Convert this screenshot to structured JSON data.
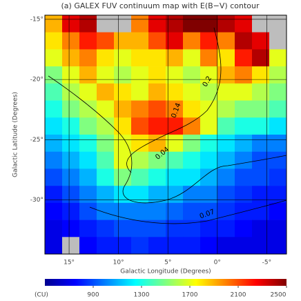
{
  "chart_data": {
    "type": "heatmap",
    "title": "(a) GALEX FUV continuum map with E(B−V) contour",
    "x_label": "Galactic Longitude (Degrees)",
    "y_label": "Galactic Latitude (Degrees)",
    "colorbar_label": "(CU)",
    "xlim": [
      17.45,
      -7
    ],
    "ylim": [
      -14.66,
      -34.5
    ],
    "xticks": [
      {
        "value": 15,
        "label": "15°"
      },
      {
        "value": 10,
        "label": "10°"
      },
      {
        "value": 5,
        "label": "5°"
      },
      {
        "value": 0,
        "label": "0°"
      },
      {
        "value": -5,
        "label": "-5°"
      }
    ],
    "yticks": [
      {
        "value": -15,
        "label": "-15°"
      },
      {
        "value": -20,
        "label": "-20°"
      },
      {
        "value": -25,
        "label": "-25°"
      },
      {
        "value": -30,
        "label": "-30°"
      }
    ],
    "clim": [
      500,
      2500
    ],
    "cticks": [
      900,
      1300,
      1700,
      2100,
      2500
    ],
    "grid": true,
    "annotations": [
      "0.14",
      "0.2",
      "0.04",
      "0.07"
    ],
    "values": [
      [
        1900,
        2300,
        2400,
        null,
        null,
        2000,
        2300,
        2400,
        2500,
        2500,
        2400,
        2300,
        null,
        null
      ],
      [
        1800,
        2000,
        2200,
        2100,
        1900,
        1900,
        2100,
        2300,
        2000,
        2200,
        2000,
        2400,
        2300,
        null
      ],
      [
        1700,
        1900,
        2000,
        1800,
        1700,
        1800,
        1800,
        1900,
        1700,
        2000,
        1800,
        2200,
        2400,
        1700
      ],
      [
        1500,
        1700,
        1900,
        1700,
        1600,
        1700,
        1800,
        1700,
        1600,
        1700,
        1900,
        2000,
        1800,
        1600
      ],
      [
        1400,
        1600,
        1700,
        1900,
        1800,
        1700,
        1900,
        1800,
        1700,
        1600,
        1700,
        1700,
        1600,
        1500
      ],
      [
        1300,
        1500,
        1600,
        1700,
        1900,
        2000,
        2100,
        2000,
        1800,
        1700,
        1600,
        1500,
        1500,
        1400
      ],
      [
        1200,
        1300,
        1500,
        1600,
        1800,
        2100,
        2200,
        2200,
        2000,
        1700,
        1400,
        1300,
        1300,
        1200
      ],
      [
        1100,
        1200,
        1300,
        1500,
        1700,
        1800,
        1900,
        1700,
        1500,
        1300,
        1200,
        1100,
        1000,
        1000
      ],
      [
        1000,
        1100,
        1200,
        1400,
        1700,
        1600,
        1500,
        1400,
        1300,
        1200,
        1100,
        1000,
        900,
        900
      ],
      [
        900,
        1000,
        1100,
        1300,
        1500,
        1400,
        1300,
        1200,
        1200,
        1100,
        1000,
        900,
        900,
        850
      ],
      [
        800,
        900,
        1000,
        1100,
        1200,
        1200,
        1100,
        1100,
        1000,
        1000,
        900,
        850,
        800,
        800
      ],
      [
        750,
        800,
        900,
        1000,
        1000,
        1000,
        1000,
        950,
        900,
        900,
        850,
        800,
        800,
        750
      ],
      [
        700,
        750,
        800,
        850,
        900,
        900,
        900,
        850,
        850,
        800,
        800,
        750,
        700,
        700
      ],
      [
        700,
        null,
        750,
        800,
        800,
        850,
        800,
        800,
        800,
        750,
        700,
        700,
        700,
        700
      ]
    ]
  }
}
